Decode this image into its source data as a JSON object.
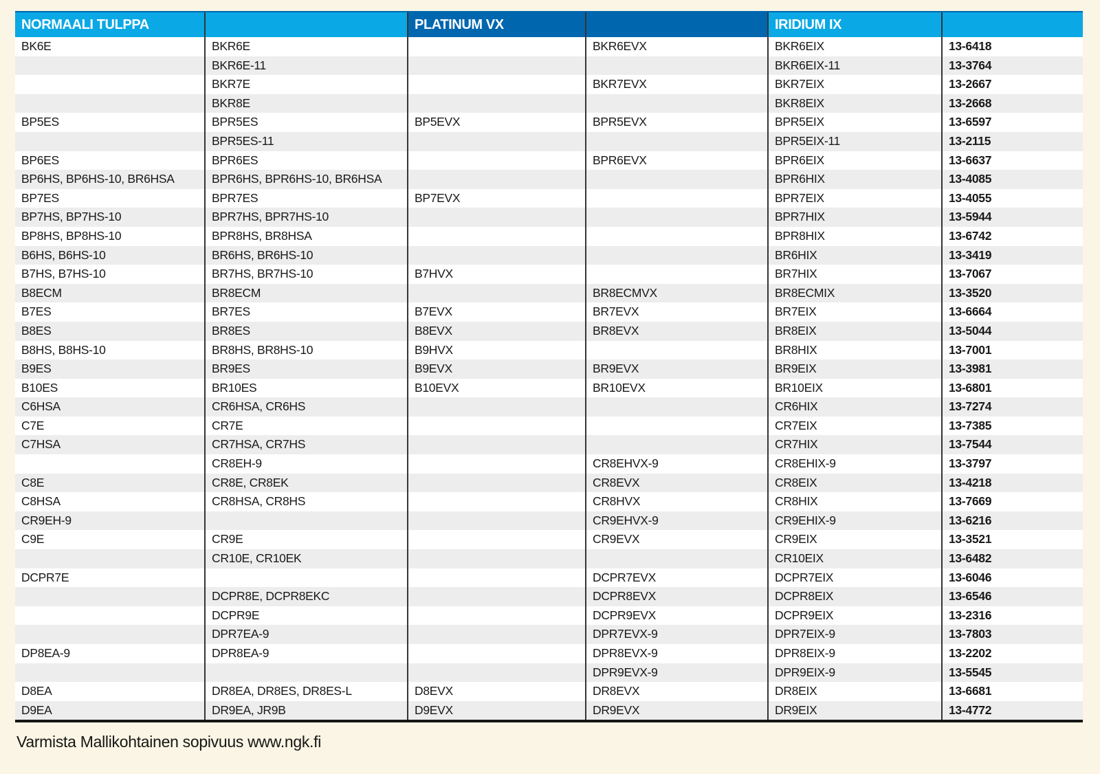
{
  "header": {
    "columns": [
      {
        "label": "NORMAALI TULPPA",
        "theme": "light"
      },
      {
        "label": "",
        "theme": "light"
      },
      {
        "label": "PLATINUM VX",
        "theme": "dark"
      },
      {
        "label": "",
        "theme": "dark"
      },
      {
        "label": "IRIDIUM IX",
        "theme": "light"
      },
      {
        "label": "",
        "theme": "light"
      }
    ]
  },
  "rows": [
    [
      "BK6E",
      "BKR6E",
      "",
      "BKR6EVX",
      "BKR6EIX",
      "13-6418"
    ],
    [
      "",
      "BKR6E-11",
      "",
      "",
      "BKR6EIX-11",
      "13-3764"
    ],
    [
      "",
      "BKR7E",
      "",
      "BKR7EVX",
      "BKR7EIX",
      "13-2667"
    ],
    [
      "",
      "BKR8E",
      "",
      "",
      "BKR8EIX",
      "13-2668"
    ],
    [
      "BP5ES",
      "BPR5ES",
      "BP5EVX",
      "BPR5EVX",
      "BPR5EIX",
      "13-6597"
    ],
    [
      "",
      "BPR5ES-11",
      "",
      "",
      "BPR5EIX-11",
      "13-2115"
    ],
    [
      "BP6ES",
      "BPR6ES",
      "",
      "BPR6EVX",
      "BPR6EIX",
      "13-6637"
    ],
    [
      "BP6HS, BP6HS-10, BR6HSA",
      "BPR6HS, BPR6HS-10, BR6HSA",
      "",
      "",
      "BPR6HIX",
      "13-4085"
    ],
    [
      "BP7ES",
      "BPR7ES",
      "BP7EVX",
      "",
      "BPR7EIX",
      "13-4055"
    ],
    [
      "BP7HS, BP7HS-10",
      "BPR7HS, BPR7HS-10",
      "",
      "",
      "BPR7HIX",
      "13-5944"
    ],
    [
      "BP8HS, BP8HS-10",
      "BPR8HS, BR8HSA",
      "",
      "",
      "BPR8HIX",
      "13-6742"
    ],
    [
      "B6HS, B6HS-10",
      "BR6HS, BR6HS-10",
      "",
      "",
      "BR6HIX",
      "13-3419"
    ],
    [
      "B7HS, B7HS-10",
      "BR7HS, BR7HS-10",
      "B7HVX",
      "",
      "BR7HIX",
      "13-7067"
    ],
    [
      "B8ECM",
      "BR8ECM",
      "",
      "BR8ECMVX",
      "BR8ECMIX",
      "13-3520"
    ],
    [
      "B7ES",
      "BR7ES",
      "B7EVX",
      "BR7EVX",
      "BR7EIX",
      "13-6664"
    ],
    [
      "B8ES",
      "BR8ES",
      "B8EVX",
      "BR8EVX",
      "BR8EIX",
      "13-5044"
    ],
    [
      "B8HS, B8HS-10",
      "BR8HS, BR8HS-10",
      "B9HVX",
      "",
      "BR8HIX",
      "13-7001"
    ],
    [
      "B9ES",
      "BR9ES",
      "B9EVX",
      "BR9EVX",
      "BR9EIX",
      "13-3981"
    ],
    [
      "B10ES",
      "BR10ES",
      "B10EVX",
      "BR10EVX",
      "BR10EIX",
      "13-6801"
    ],
    [
      "C6HSA",
      "CR6HSA, CR6HS",
      "",
      "",
      "CR6HIX",
      "13-7274"
    ],
    [
      "C7E",
      "CR7E",
      "",
      "",
      "CR7EIX",
      "13-7385"
    ],
    [
      "C7HSA",
      "CR7HSA, CR7HS",
      "",
      "",
      "CR7HIX",
      "13-7544"
    ],
    [
      "",
      "CR8EH-9",
      "",
      "CR8EHVX-9",
      "CR8EHIX-9",
      "13-3797"
    ],
    [
      "C8E",
      "CR8E, CR8EK",
      "",
      "CR8EVX",
      "CR8EIX",
      "13-4218"
    ],
    [
      "C8HSA",
      "CR8HSA, CR8HS",
      "",
      "CR8HVX",
      "CR8HIX",
      "13-7669"
    ],
    [
      "CR9EH-9",
      "",
      "",
      "CR9EHVX-9",
      "CR9EHIX-9",
      "13-6216"
    ],
    [
      "C9E",
      "CR9E",
      "",
      "CR9EVX",
      "CR9EIX",
      "13-3521"
    ],
    [
      "",
      "CR10E, CR10EK",
      "",
      "",
      "CR10EIX",
      "13-6482"
    ],
    [
      "DCPR7E",
      "",
      "",
      "DCPR7EVX",
      "DCPR7EIX",
      "13-6046"
    ],
    [
      "",
      "DCPR8E, DCPR8EKC",
      "",
      "DCPR8EVX",
      "DCPR8EIX",
      "13-6546"
    ],
    [
      "",
      "DCPR9E",
      "",
      "DCPR9EVX",
      "DCPR9EIX",
      "13-2316"
    ],
    [
      "",
      "DPR7EA-9",
      "",
      "DPR7EVX-9",
      "DPR7EIX-9",
      "13-7803"
    ],
    [
      "DP8EA-9",
      "DPR8EA-9",
      "",
      "DPR8EVX-9",
      "DPR8EIX-9",
      "13-2202"
    ],
    [
      "",
      "",
      "",
      "DPR9EVX-9",
      "DPR9EIX-9",
      "13-5545"
    ],
    [
      "D8EA",
      "DR8EA, DR8ES, DR8ES-L",
      "D8EVX",
      "DR8EVX",
      "DR8EIX",
      "13-6681"
    ],
    [
      "D9EA",
      "DR9EA, JR9B",
      "D9EVX",
      "DR9EVX",
      "DR9EIX",
      "13-4772"
    ]
  ],
  "footer": {
    "text": "Varmista Mallikohtainen sopivuus www.ngk.fi"
  },
  "colors": {
    "header_light_blue": "#0AA8E4",
    "header_dark_blue": "#0066AE",
    "row_stripe_gray": "#EDEDED",
    "page_background_cream": "#FAF5E4",
    "divider_dark": "#353535",
    "text_dark": "#191919"
  }
}
